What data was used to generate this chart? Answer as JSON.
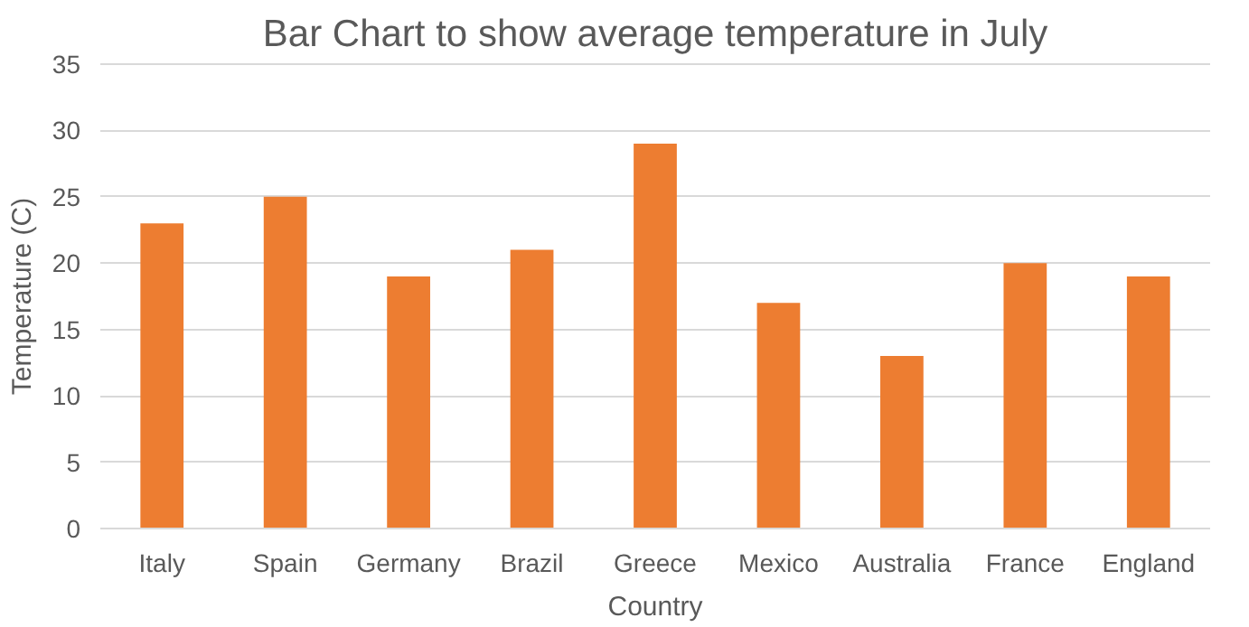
{
  "chart_data": {
    "type": "bar",
    "title": "Bar Chart to show average temperature in July",
    "xlabel": "Country",
    "ylabel": "Temperature (C)",
    "categories": [
      "Italy",
      "Spain",
      "Germany",
      "Brazil",
      "Greece",
      "Mexico",
      "Australia",
      "France",
      "England"
    ],
    "values": [
      23,
      25,
      19,
      21,
      29,
      17,
      13,
      20,
      19
    ],
    "color": "#ed7d31",
    "ylim": [
      0,
      35
    ],
    "yticks": [
      0,
      5,
      10,
      15,
      20,
      25,
      30,
      35
    ],
    "grid": "y"
  }
}
